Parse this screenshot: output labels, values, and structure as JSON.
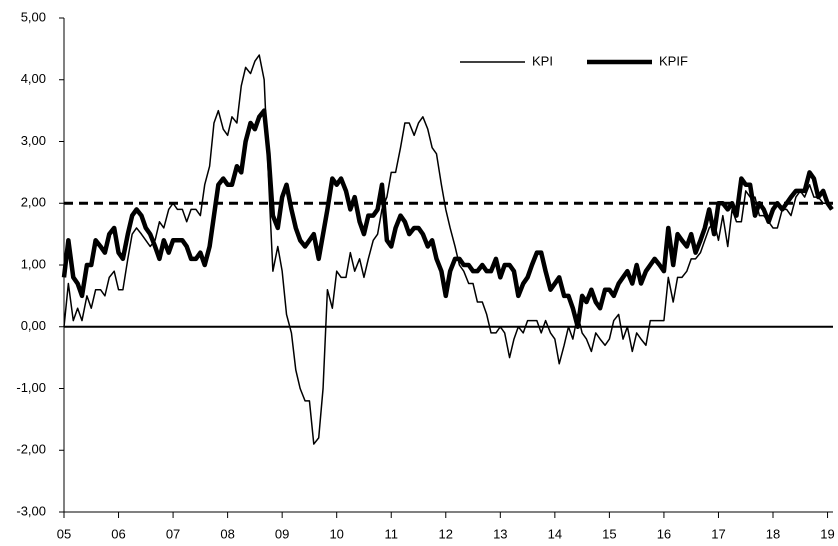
{
  "chart_data": {
    "type": "line",
    "x": [
      2005,
      2005.08,
      2005.17,
      2005.25,
      2005.33,
      2005.42,
      2005.5,
      2005.58,
      2005.67,
      2005.75,
      2005.83,
      2005.92,
      2006,
      2006.08,
      2006.17,
      2006.25,
      2006.33,
      2006.42,
      2006.5,
      2006.58,
      2006.67,
      2006.75,
      2006.83,
      2006.92,
      2007,
      2007.08,
      2007.17,
      2007.25,
      2007.33,
      2007.42,
      2007.5,
      2007.58,
      2007.67,
      2007.75,
      2007.83,
      2007.92,
      2008,
      2008.08,
      2008.17,
      2008.25,
      2008.33,
      2008.42,
      2008.5,
      2008.58,
      2008.67,
      2008.75,
      2008.83,
      2008.92,
      2009,
      2009.08,
      2009.17,
      2009.25,
      2009.33,
      2009.42,
      2009.5,
      2009.58,
      2009.67,
      2009.75,
      2009.83,
      2009.92,
      2010,
      2010.08,
      2010.17,
      2010.25,
      2010.33,
      2010.42,
      2010.5,
      2010.58,
      2010.67,
      2010.75,
      2010.83,
      2010.92,
      2011,
      2011.08,
      2011.17,
      2011.25,
      2011.33,
      2011.42,
      2011.5,
      2011.58,
      2011.67,
      2011.75,
      2011.83,
      2011.92,
      2012,
      2012.08,
      2012.17,
      2012.25,
      2012.33,
      2012.42,
      2012.5,
      2012.58,
      2012.67,
      2012.75,
      2012.83,
      2012.92,
      2013,
      2013.08,
      2013.17,
      2013.25,
      2013.33,
      2013.42,
      2013.5,
      2013.58,
      2013.67,
      2013.75,
      2013.83,
      2013.92,
      2014,
      2014.08,
      2014.17,
      2014.25,
      2014.33,
      2014.42,
      2014.5,
      2014.58,
      2014.67,
      2014.75,
      2014.83,
      2014.92,
      2015,
      2015.08,
      2015.17,
      2015.25,
      2015.33,
      2015.42,
      2015.5,
      2015.58,
      2015.67,
      2015.75,
      2015.83,
      2015.92,
      2016,
      2016.08,
      2016.17,
      2016.25,
      2016.33,
      2016.42,
      2016.5,
      2016.58,
      2016.67,
      2016.75,
      2016.83,
      2016.92,
      2017,
      2017.08,
      2017.17,
      2017.25,
      2017.33,
      2017.42,
      2017.5,
      2017.58,
      2017.67,
      2017.75,
      2017.83,
      2017.92,
      2018,
      2018.08,
      2018.17,
      2018.25,
      2018.33,
      2018.42,
      2018.5,
      2018.58,
      2018.67,
      2018.75,
      2018.83,
      2018.92,
      2019,
      2019.08
    ],
    "series": [
      {
        "name": "KPI",
        "color": "#000000",
        "width": 1.5,
        "values": [
          0.0,
          0.7,
          0.1,
          0.3,
          0.1,
          0.5,
          0.3,
          0.6,
          0.6,
          0.5,
          0.8,
          0.9,
          0.6,
          0.6,
          1.1,
          1.5,
          1.6,
          1.5,
          1.4,
          1.3,
          1.4,
          1.7,
          1.6,
          1.9,
          2.0,
          1.9,
          1.9,
          1.7,
          1.9,
          1.9,
          1.8,
          2.3,
          2.6,
          3.3,
          3.5,
          3.2,
          3.1,
          3.4,
          3.3,
          3.9,
          4.2,
          4.1,
          4.3,
          4.4,
          4.0,
          2.4,
          0.9,
          1.3,
          0.9,
          0.2,
          -0.1,
          -0.7,
          -1.0,
          -1.2,
          -1.2,
          -1.9,
          -1.8,
          -1.0,
          0.6,
          0.3,
          0.9,
          0.8,
          0.8,
          1.2,
          0.9,
          1.1,
          0.8,
          1.1,
          1.4,
          1.5,
          1.9,
          2.1,
          2.5,
          2.5,
          2.9,
          3.3,
          3.3,
          3.1,
          3.3,
          3.4,
          3.2,
          2.9,
          2.8,
          2.3,
          1.9,
          1.6,
          1.3,
          1.0,
          0.9,
          0.7,
          0.7,
          0.4,
          0.4,
          0.2,
          -0.1,
          -0.1,
          0.0,
          -0.1,
          -0.5,
          -0.2,
          0.0,
          -0.1,
          0.1,
          0.1,
          0.1,
          -0.1,
          0.1,
          -0.1,
          -0.2,
          -0.6,
          -0.3,
          0.0,
          -0.2,
          0.2,
          -0.1,
          -0.2,
          -0.4,
          -0.1,
          -0.2,
          -0.3,
          -0.2,
          0.1,
          0.2,
          -0.2,
          0.0,
          -0.4,
          -0.1,
          -0.2,
          -0.3,
          0.1,
          0.1,
          0.1,
          0.1,
          0.8,
          0.4,
          0.8,
          0.8,
          0.9,
          1.1,
          1.1,
          1.2,
          1.4,
          1.6,
          1.7,
          1.4,
          1.8,
          1.3,
          1.9,
          1.7,
          1.7,
          2.2,
          2.1,
          2.1,
          1.8,
          1.8,
          1.7,
          1.6,
          1.6,
          1.9,
          1.9,
          1.8,
          2.1,
          2.2,
          2.1,
          2.3,
          2.1,
          2.1,
          2.0,
          2.0,
          1.9
        ]
      },
      {
        "name": "KPIF",
        "color": "#000000",
        "width": 4.5,
        "values": [
          0.8,
          1.4,
          0.8,
          0.7,
          0.5,
          1.0,
          1.0,
          1.4,
          1.3,
          1.2,
          1.5,
          1.6,
          1.2,
          1.1,
          1.5,
          1.8,
          1.9,
          1.8,
          1.6,
          1.5,
          1.3,
          1.1,
          1.4,
          1.2,
          1.4,
          1.4,
          1.4,
          1.3,
          1.1,
          1.1,
          1.2,
          1.0,
          1.3,
          1.8,
          2.3,
          2.4,
          2.3,
          2.3,
          2.6,
          2.5,
          3.0,
          3.3,
          3.2,
          3.4,
          3.5,
          2.8,
          1.8,
          1.6,
          2.1,
          2.3,
          1.9,
          1.6,
          1.4,
          1.3,
          1.4,
          1.5,
          1.1,
          1.5,
          1.9,
          2.4,
          2.3,
          2.4,
          2.2,
          1.9,
          2.1,
          1.7,
          1.5,
          1.8,
          1.8,
          1.9,
          2.3,
          1.4,
          1.3,
          1.6,
          1.8,
          1.7,
          1.5,
          1.6,
          1.6,
          1.5,
          1.3,
          1.4,
          1.1,
          0.9,
          0.5,
          0.9,
          1.1,
          1.1,
          1.0,
          1.0,
          0.9,
          0.9,
          1.0,
          0.9,
          0.9,
          1.1,
          0.8,
          1.0,
          1.0,
          0.9,
          0.5,
          0.7,
          0.8,
          1.0,
          1.2,
          1.2,
          0.9,
          0.6,
          0.7,
          0.8,
          0.5,
          0.5,
          0.3,
          0.0,
          0.5,
          0.4,
          0.6,
          0.4,
          0.3,
          0.6,
          0.6,
          0.5,
          0.7,
          0.8,
          0.9,
          0.7,
          1.0,
          0.7,
          0.9,
          1.0,
          1.1,
          1.0,
          0.9,
          1.6,
          1.0,
          1.5,
          1.4,
          1.3,
          1.5,
          1.2,
          1.4,
          1.6,
          1.9,
          1.5,
          2.0,
          2.0,
          1.9,
          2.0,
          1.8,
          2.4,
          2.3,
          2.3,
          1.8,
          2.0,
          1.9,
          1.7,
          1.9,
          2.0,
          1.9,
          2.0,
          2.1,
          2.2,
          2.2,
          2.2,
          2.5,
          2.4,
          2.1,
          2.2,
          2.0,
          1.9
        ]
      }
    ],
    "xlim": [
      2005,
      2019.1
    ],
    "xticks": [
      {
        "value": 2005,
        "label": "05"
      },
      {
        "value": 2006,
        "label": "06"
      },
      {
        "value": 2007,
        "label": "07"
      },
      {
        "value": 2008,
        "label": "08"
      },
      {
        "value": 2009,
        "label": "09"
      },
      {
        "value": 2010,
        "label": "10"
      },
      {
        "value": 2011,
        "label": "11"
      },
      {
        "value": 2012,
        "label": "12"
      },
      {
        "value": 2013,
        "label": "13"
      },
      {
        "value": 2014,
        "label": "14"
      },
      {
        "value": 2015,
        "label": "15"
      },
      {
        "value": 2016,
        "label": "16"
      },
      {
        "value": 2017,
        "label": "17"
      },
      {
        "value": 2018,
        "label": "18"
      },
      {
        "value": 2019,
        "label": "19"
      }
    ],
    "ylim": [
      -3,
      5
    ],
    "yticks": [
      {
        "value": -3,
        "label": "-3,00"
      },
      {
        "value": -2,
        "label": "-2,00"
      },
      {
        "value": -1,
        "label": "-1,00"
      },
      {
        "value": 0,
        "label": "0,00"
      },
      {
        "value": 1,
        "label": "1,00"
      },
      {
        "value": 2,
        "label": "2,00"
      },
      {
        "value": 3,
        "label": "3,00"
      },
      {
        "value": 4,
        "label": "4,00"
      },
      {
        "value": 5,
        "label": "5,00"
      }
    ],
    "hlines": [
      {
        "value": 2,
        "dashed": true
      },
      {
        "value": 0,
        "dashed": false
      }
    ],
    "legend": "top-right",
    "grid": false
  }
}
